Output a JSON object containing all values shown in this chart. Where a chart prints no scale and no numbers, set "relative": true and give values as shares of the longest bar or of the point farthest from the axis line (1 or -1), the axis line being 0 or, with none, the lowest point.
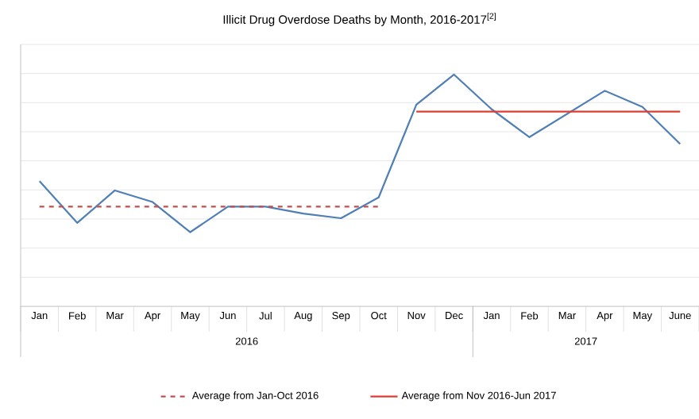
{
  "chart_data": {
    "type": "line",
    "title": "Illicit Drug Overdose Deaths by Month, 2016-2017$^{[2]}$",
    "categories": [
      "Jan",
      "Feb",
      "Mar",
      "Apr",
      "May",
      "Jun",
      "Jul",
      "Aug",
      "Sep",
      "Oct",
      "Nov",
      "Dec",
      "Jan",
      "Feb",
      "Mar",
      "Apr",
      "May",
      "June"
    ],
    "relative": true,
    "grid": "y",
    "legend": "bottom",
    "marker": "none",
    "series": [
      {
        "color": "#4f7fb5",
        "values": [
          0.54,
          0.36,
          0.5,
          0.45,
          0.32,
          0.43,
          0.43,
          0.4,
          0.38,
          0.47,
          0.87,
          1,
          0.85,
          0.73,
          0.83,
          0.93,
          0.86,
          0.7
        ]
      },
      {
        "name": "Average from Jan-Oct 2016",
        "color": "#c0504d",
        "line_style": "dashed",
        "values": [
          0.43,
          0.43,
          0.43,
          0.43,
          0.43,
          0.43,
          0.43,
          0.43,
          0.43,
          0.43,
          null,
          null,
          null,
          null,
          null,
          null,
          null,
          null
        ]
      },
      {
        "name": "Average from Nov 2016-Jun 2017",
        "color": "#e03c31",
        "line_style": "solid",
        "values": [
          null,
          null,
          null,
          null,
          null,
          null,
          null,
          null,
          null,
          null,
          0.84,
          0.84,
          0.84,
          0.84,
          0.84,
          0.84,
          0.84,
          0.84
        ]
      }
    ],
    "annotations": [
      "2016",
      "2017"
    ]
  }
}
